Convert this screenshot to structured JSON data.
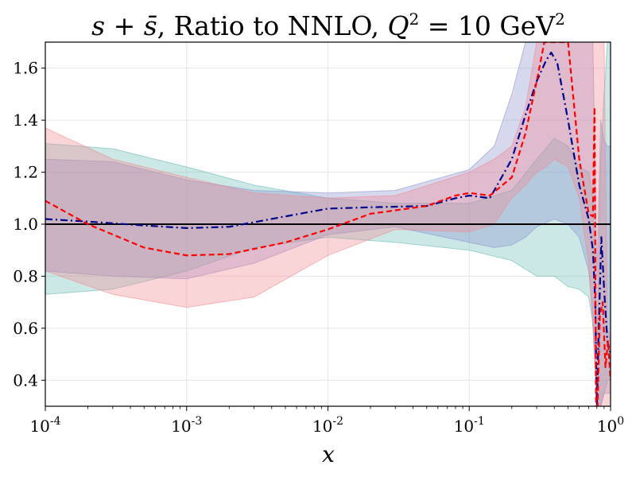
{
  "chart_data": {
    "type": "line",
    "title": "s + s̄, Ratio to NNLO, Q² = 10 GeV²",
    "title_parts": {
      "s": "s",
      "plus": " + ",
      "sbar": "s̄",
      "mid": ", Ratio to NNLO, ",
      "q": "Q",
      "sup2": "2",
      "eq": " = 10 GeV",
      "sup2b": "2"
    },
    "xlabel": "x",
    "ylabel": "",
    "xscale": "log",
    "xlim": [
      0.0001,
      1
    ],
    "ylim": [
      0.3,
      1.7
    ],
    "grid": true,
    "x_ticks": [
      {
        "value": 0.0001,
        "base": "10",
        "exp": "-4"
      },
      {
        "value": 0.001,
        "base": "10",
        "exp": "-3"
      },
      {
        "value": 0.01,
        "base": "10",
        "exp": "-2"
      },
      {
        "value": 0.1,
        "base": "10",
        "exp": "-1"
      },
      {
        "value": 1,
        "base": "10",
        "exp": "0"
      }
    ],
    "y_ticks": [
      {
        "value": 0.4,
        "label": "0.4"
      },
      {
        "value": 0.6,
        "label": "0.6"
      },
      {
        "value": 0.8,
        "label": "0.8"
      },
      {
        "value": 1.0,
        "label": "1.0"
      },
      {
        "value": 1.2,
        "label": "1.2"
      },
      {
        "value": 1.4,
        "label": "1.4"
      },
      {
        "value": 1.6,
        "label": "1.6"
      }
    ],
    "reference_line": {
      "y": 1.0,
      "color": "#000000"
    },
    "bands": [
      {
        "name": "band-teal",
        "color": "#5fb6b0",
        "opacity": 0.32,
        "x": [
          0.0001,
          0.0003,
          0.001,
          0.003,
          0.01,
          0.03,
          0.1,
          0.2,
          0.3,
          0.4,
          0.5,
          0.6,
          0.7,
          0.75,
          0.8,
          0.85,
          0.9,
          0.95,
          1.0
        ],
        "upper": [
          1.31,
          1.29,
          1.22,
          1.15,
          1.1,
          1.08,
          1.08,
          1.13,
          1.25,
          1.33,
          1.3,
          1.22,
          1.2,
          1.1,
          0.5,
          1.25,
          1.5,
          1.7,
          1.7
        ],
        "lower": [
          0.73,
          0.75,
          0.82,
          0.91,
          0.95,
          0.93,
          0.9,
          0.86,
          0.8,
          0.8,
          0.76,
          0.75,
          0.72,
          0.62,
          0.3,
          0.3,
          0.35,
          0.4,
          0.4
        ]
      },
      {
        "name": "band-blue",
        "color": "#8a8fcf",
        "opacity": 0.35,
        "x": [
          0.0001,
          0.0003,
          0.001,
          0.003,
          0.01,
          0.03,
          0.1,
          0.15,
          0.2,
          0.25,
          0.3,
          0.4,
          0.5,
          0.6,
          0.7,
          0.75,
          0.8,
          0.85,
          0.9,
          0.95,
          1.0
        ],
        "upper": [
          1.25,
          1.24,
          1.17,
          1.13,
          1.12,
          1.13,
          1.21,
          1.3,
          1.5,
          1.7,
          1.7,
          1.7,
          1.7,
          1.7,
          1.7,
          1.7,
          0.8,
          1.4,
          1.32,
          1.3,
          1.3
        ],
        "lower": [
          0.82,
          0.8,
          0.79,
          0.85,
          0.96,
          0.99,
          0.93,
          0.91,
          0.92,
          0.95,
          0.99,
          1.02,
          1.0,
          0.95,
          0.82,
          0.65,
          0.3,
          0.3,
          0.35,
          0.35,
          0.35
        ]
      },
      {
        "name": "band-pink",
        "color": "#f2868f",
        "opacity": 0.35,
        "x": [
          0.0001,
          0.0003,
          0.001,
          0.003,
          0.01,
          0.03,
          0.1,
          0.15,
          0.2,
          0.25,
          0.3,
          0.35,
          0.4,
          0.5,
          0.6,
          0.7,
          0.75,
          0.8,
          0.85,
          0.9,
          0.95,
          1.0
        ],
        "upper": [
          1.37,
          1.25,
          1.18,
          1.12,
          1.1,
          1.11,
          1.2,
          1.25,
          1.3,
          1.45,
          1.7,
          1.7,
          1.7,
          1.7,
          1.7,
          1.7,
          1.7,
          1.7,
          1.7,
          1.7,
          0.6,
          0.55
        ],
        "lower": [
          0.82,
          0.73,
          0.68,
          0.72,
          0.88,
          0.98,
          0.97,
          1.0,
          1.1,
          1.15,
          1.2,
          1.22,
          1.25,
          1.22,
          1.1,
          0.85,
          0.6,
          0.3,
          0.3,
          0.3,
          0.3,
          0.3
        ]
      }
    ],
    "series": [
      {
        "name": "dash-dot-navy",
        "color": "#00008b",
        "style": "dashdot",
        "x": [
          0.0001,
          0.0002,
          0.0005,
          0.001,
          0.002,
          0.005,
          0.01,
          0.02,
          0.05,
          0.08,
          0.1,
          0.14,
          0.2,
          0.25,
          0.3,
          0.35,
          0.38,
          0.42,
          0.5,
          0.6,
          0.7,
          0.75,
          0.78,
          0.8,
          0.82,
          0.86,
          0.9,
          0.95,
          1.0
        ],
        "y": [
          1.02,
          1.01,
          0.995,
          0.985,
          0.99,
          1.03,
          1.06,
          1.065,
          1.07,
          1.1,
          1.11,
          1.1,
          1.25,
          1.42,
          1.55,
          1.63,
          1.66,
          1.62,
          1.4,
          1.15,
          1.02,
          0.9,
          0.7,
          0.3,
          0.55,
          0.95,
          0.75,
          0.55,
          0.5
        ]
      },
      {
        "name": "dashed-red",
        "color": "#ff0000",
        "style": "dashed",
        "x": [
          0.0001,
          0.0002,
          0.0005,
          0.001,
          0.002,
          0.005,
          0.01,
          0.02,
          0.05,
          0.08,
          0.1,
          0.14,
          0.2,
          0.25,
          0.3,
          0.34,
          0.37,
          0.42,
          0.5,
          0.6,
          0.7,
          0.75,
          0.77,
          0.79,
          0.81,
          0.84,
          0.88,
          0.92,
          0.96,
          1.0
        ],
        "y": [
          1.09,
          1.0,
          0.91,
          0.88,
          0.885,
          0.93,
          0.98,
          1.04,
          1.07,
          1.11,
          1.12,
          1.11,
          1.18,
          1.35,
          1.55,
          1.7,
          1.7,
          1.7,
          1.7,
          1.25,
          1.04,
          1.03,
          1.45,
          0.3,
          0.3,
          0.65,
          0.7,
          0.45,
          0.55,
          0.4
        ]
      }
    ]
  }
}
